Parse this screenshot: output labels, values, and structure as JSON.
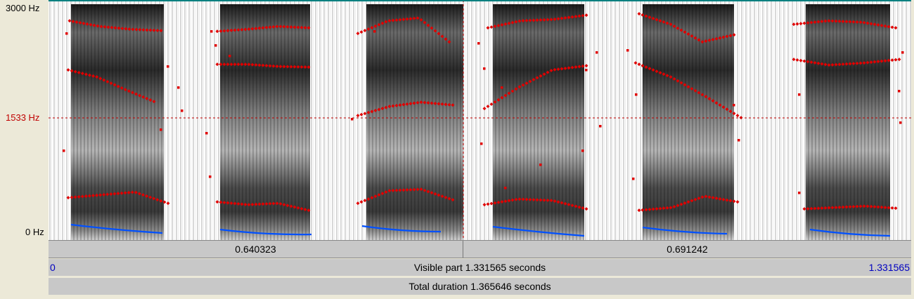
{
  "axis": {
    "top_label": "3000 Hz",
    "cursor_label": "1533 Hz",
    "bottom_label": "0 Hz"
  },
  "time_bar": {
    "left_value": "0.640323",
    "right_value": "0.691242"
  },
  "visible_bar": {
    "start": "0",
    "label": "Visible part 1.331565 seconds",
    "end": "1.331565"
  },
  "total_bar": {
    "label": "Total duration 1.365646 seconds"
  },
  "colors": {
    "formant": "#e00000",
    "pitch": "#0050ff",
    "cursor": "#c00000",
    "background": "#ece9d8",
    "bar": "#c8c8c8"
  }
}
